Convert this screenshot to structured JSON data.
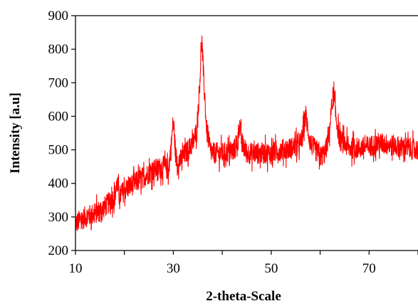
{
  "chart_data": {
    "type": "line",
    "title": "",
    "xlabel": "2-theta-Scale",
    "ylabel": "Intensity [a.u]",
    "xlim": [
      10,
      80
    ],
    "ylim": [
      200,
      900
    ],
    "x_ticks": [
      10,
      30,
      50,
      70
    ],
    "y_ticks": [
      200,
      300,
      400,
      500,
      600,
      700,
      800,
      900
    ],
    "x_tick_labels": [
      "10",
      "30",
      "50",
      "70"
    ],
    "y_tick_labels": [
      "200",
      "300",
      "400",
      "500",
      "600",
      "700",
      "800",
      "900"
    ],
    "grid": false,
    "legend": "none",
    "series": [
      {
        "color": "#ff0000",
        "x": [
          10,
          12,
          14,
          16,
          18,
          18.5,
          19,
          20,
          22,
          24,
          26,
          28,
          29,
          29.5,
          30,
          30.5,
          31,
          32,
          33,
          34,
          34.8,
          35.4,
          35.8,
          36.2,
          36.8,
          37.5,
          38,
          40,
          42,
          43,
          43.5,
          44,
          45,
          46,
          48,
          50,
          52,
          54,
          55,
          56,
          56.5,
          57,
          57.4,
          58,
          59,
          60,
          61,
          61.8,
          62.3,
          62.7,
          63.2,
          64,
          66,
          68,
          70,
          72,
          74,
          76,
          78,
          80
        ],
        "y": [
          280,
          300,
          310,
          330,
          360,
          400,
          360,
          380,
          400,
          420,
          440,
          450,
          440,
          500,
          590,
          480,
          460,
          480,
          500,
          520,
          560,
          700,
          835,
          710,
          560,
          500,
          490,
          490,
          495,
          510,
          580,
          520,
          490,
          490,
          490,
          490,
          500,
          505,
          510,
          520,
          545,
          610,
          570,
          520,
          500,
          480,
          490,
          540,
          620,
          670,
          600,
          530,
          505,
          505,
          510,
          520,
          515,
          510,
          505,
          500
        ],
        "noise_amplitude": 40
      }
    ]
  }
}
